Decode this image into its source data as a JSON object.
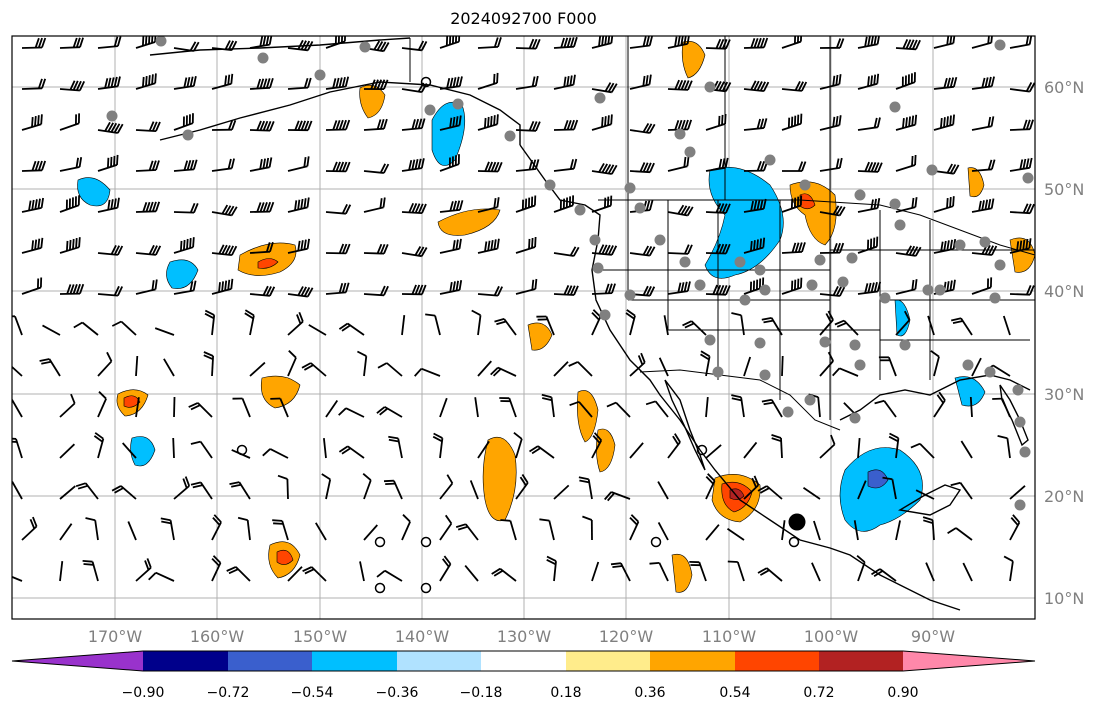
{
  "title": "2024092700 F000",
  "map": {
    "lon_labels": [
      "170°W",
      "160°W",
      "150°W",
      "140°W",
      "130°W",
      "120°W",
      "110°W",
      "100°W",
      "90°W"
    ],
    "lat_labels": [
      "60°N",
      "50°N",
      "40°N",
      "30°N",
      "20°N",
      "10°N"
    ],
    "grid": true,
    "overlays": [
      "wind barbs",
      "station markers",
      "coastlines",
      "state and country borders",
      "filled contours"
    ]
  },
  "colorbar": {
    "tick_labels": [
      "−0.90",
      "−0.72",
      "−0.54",
      "−0.36",
      "−0.18",
      "0.18",
      "0.36",
      "0.54",
      "0.72",
      "0.90"
    ],
    "colors": [
      "#9932cc",
      "#00008b",
      "#3a5fcd",
      "#00bfff",
      "#b0e2ff",
      "#ffffff",
      "#ffec8b",
      "#ffa500",
      "#ff4500",
      "#b22222",
      "#ff88aa"
    ],
    "extend": "both"
  }
}
